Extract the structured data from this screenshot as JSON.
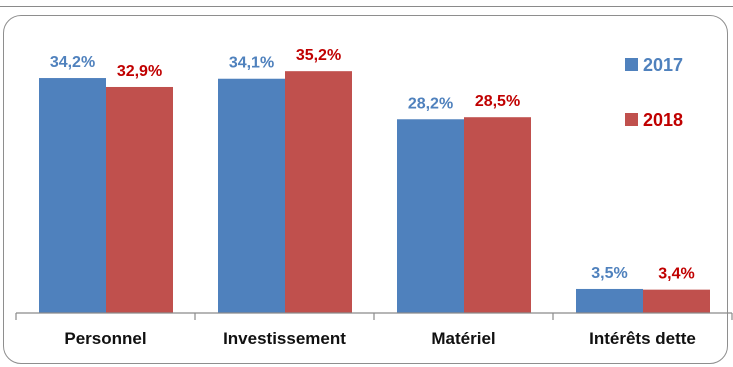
{
  "chart_data": {
    "type": "bar",
    "categories": [
      "Personnel",
      "Investissement",
      "Matériel",
      "Intérêts dette"
    ],
    "series": [
      {
        "name": "2017",
        "values": [
          34.2,
          34.1,
          28.2,
          3.5
        ],
        "labels": [
          "34,2%",
          "34,1%",
          "28,2%",
          "3,5%"
        ],
        "color": "#4F81BD",
        "label_color": "#4F81BD"
      },
      {
        "name": "2018",
        "values": [
          32.9,
          35.2,
          28.5,
          3.4
        ],
        "labels": [
          "32,9%",
          "35,2%",
          "28,5%",
          "3,4%"
        ],
        "color": "#C0504D",
        "label_color": "#C00000"
      }
    ],
    "ylim": [
      0,
      40
    ],
    "grid": false,
    "legend": "top-right"
  }
}
